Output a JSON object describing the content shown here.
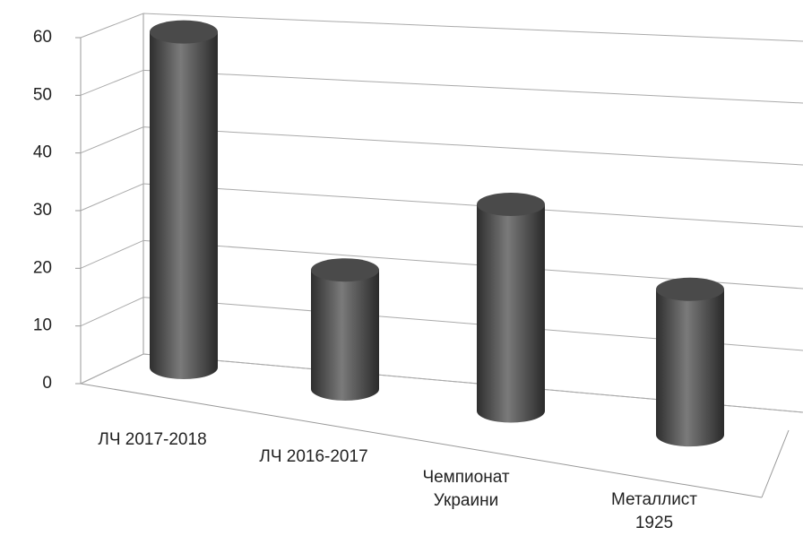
{
  "chart_data": {
    "type": "bar3d",
    "categories": [
      "ЛЧ 2017-2018",
      "ЛЧ 2016-2017",
      "Чемпионат Украини",
      "Металлист 1925"
    ],
    "values": [
      60,
      21,
      36,
      25
    ],
    "color": "#4a4a4a",
    "ylim": [
      0,
      60
    ],
    "yticks": [
      0,
      10,
      20,
      30,
      40,
      50,
      60
    ],
    "grid": true
  }
}
